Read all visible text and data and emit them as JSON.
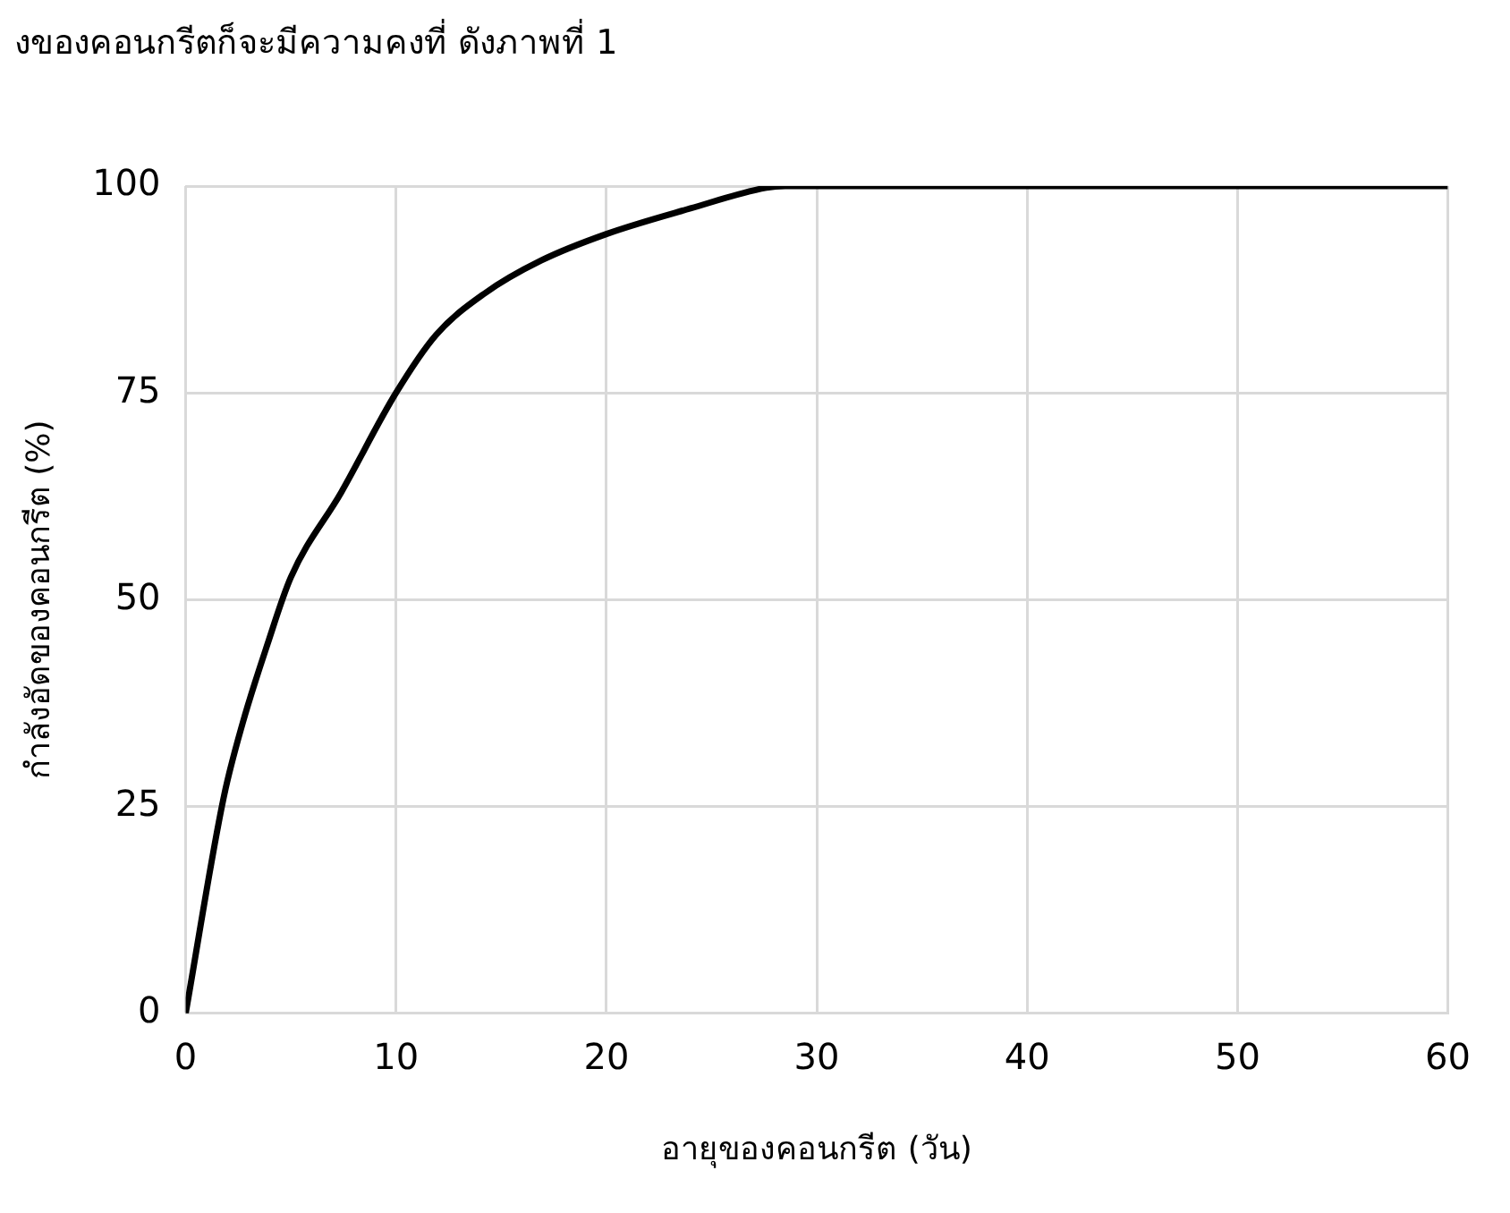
{
  "chart_data": {
    "type": "line",
    "annotations": [
      "งของคอนกรีตก็จะมีความคงที่ ดังภาพที่ 1"
    ],
    "xlabel": "อายุของคอนกรีต (วัน)",
    "ylabel": "กำลังอัดของคอนกรีต (%)",
    "x": [
      0,
      1.8,
      2.7,
      3.9,
      5,
      7.4,
      10,
      11.9,
      14.2,
      16.9,
      20,
      24,
      27.6,
      28.5,
      60
    ],
    "series": [
      {
        "color": "#000000",
        "values": [
          0,
          26,
          35,
          44.7,
          52.7,
          63,
          75,
          82,
          87,
          91,
          94.2,
          97.3,
          99.8,
          100,
          100
        ]
      }
    ],
    "xlim": [
      0,
      60
    ],
    "xticks": [
      0,
      10,
      20,
      30,
      40,
      50,
      60
    ],
    "ylim": [
      0,
      100
    ],
    "yticks": [
      0,
      25,
      50,
      75,
      100
    ],
    "grid": true,
    "legend": false,
    "marker": "none",
    "line_style": "solid"
  }
}
